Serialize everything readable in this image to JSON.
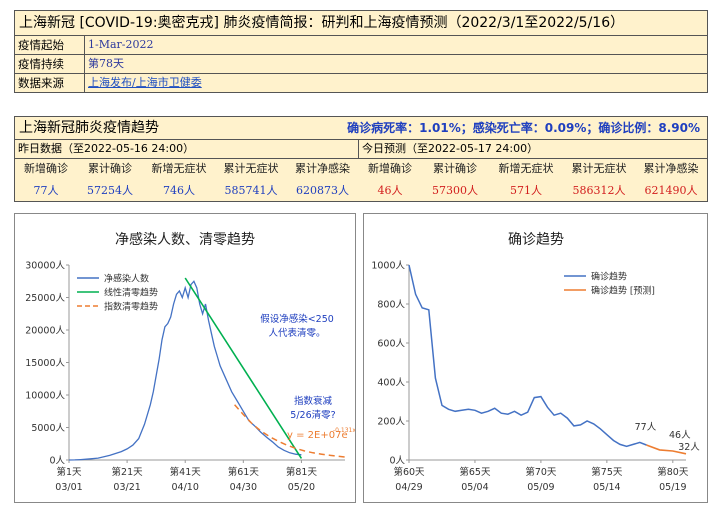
{
  "header": {
    "title": "上海新冠 [COVID-19:奥密克戎] 肺炎疫情简报：研判和上海疫情预测（2022/3/1至2022/5/16）",
    "rows": [
      {
        "label": "疫情起始",
        "value": "1-Mar-2022"
      },
      {
        "label": "疫情持续",
        "value": "第78天"
      },
      {
        "label": "数据来源",
        "value": "上海发布/上海市卫健委"
      }
    ]
  },
  "trend": {
    "title": "上海新冠肺炎疫情趋势",
    "rates": "确诊病死率：1.01%；感染死亡率：0.09%；确诊比例：8.90%",
    "yesterday": {
      "label": "昨日数据（至2022-05-16 24:00）",
      "headers": [
        "新增确诊",
        "累计确诊",
        "新增无症状",
        "累计无症状",
        "累计净感染"
      ],
      "values": [
        "77人",
        "57254人",
        "746人",
        "585741人",
        "620873人"
      ]
    },
    "today": {
      "label": "今日预测（至2022-05-17 24:00）",
      "headers": [
        "新增确诊",
        "累计确诊",
        "新增无症状",
        "累计无症状",
        "累计净感染"
      ],
      "values": [
        "46人",
        "57300人",
        "571人",
        "586312人",
        "621490人"
      ]
    }
  },
  "chart_data": [
    {
      "type": "line",
      "title": "净感染人数、清零趋势",
      "ylim": [
        0,
        30000
      ],
      "yticks": [
        0,
        5000,
        10000,
        15000,
        20000,
        25000,
        30000
      ],
      "ytick_labels": [
        "0人",
        "5000人",
        "10000人",
        "15000人",
        "20000人",
        "25000人",
        "30000人"
      ],
      "xlim": [
        1,
        96
      ],
      "xticks": [
        1,
        21,
        41,
        61,
        81
      ],
      "xtick_labels": [
        "第1天",
        "第21天",
        "第41天",
        "第61天",
        "第81天"
      ],
      "xtick_dates": [
        "03/01",
        "03/21",
        "04/10",
        "04/30",
        "05/20"
      ],
      "legend": [
        "净感染人数",
        "线性清零趋势",
        "指数清零趋势"
      ],
      "colors": {
        "net": "#4472c4",
        "linear": "#00b050",
        "exp": "#ed7d31",
        "text": "#1f3fbf",
        "formula": "#ed7d31"
      },
      "series": [
        {
          "name": "净感染人数",
          "x": [
            1,
            3,
            5,
            7,
            9,
            11,
            13,
            15,
            17,
            19,
            21,
            23,
            25,
            27,
            29,
            30,
            31,
            32,
            33,
            34,
            35,
            36,
            37,
            38,
            39,
            40,
            41,
            42,
            43,
            44,
            45,
            46,
            47,
            48,
            49,
            50,
            51,
            52,
            53,
            55,
            57,
            59,
            61,
            63,
            65,
            67,
            69,
            71,
            73,
            75,
            77,
            79,
            81
          ],
          "values": [
            0,
            20,
            60,
            120,
            200,
            300,
            500,
            700,
            1000,
            1300,
            1700,
            2300,
            3300,
            5500,
            8500,
            10500,
            13000,
            15500,
            18500,
            20500,
            21000,
            22000,
            24000,
            25500,
            26000,
            25000,
            26500,
            25000,
            27000,
            27500,
            26500,
            24000,
            22500,
            24000,
            21500,
            19500,
            17500,
            16000,
            14500,
            12500,
            10500,
            9000,
            7500,
            6000,
            5200,
            4300,
            3500,
            2800,
            2000,
            1500,
            1100,
            900,
            800
          ]
        },
        {
          "name": "线性清零趋势",
          "x": [
            41,
            81
          ],
          "values": [
            28000,
            250
          ]
        },
        {
          "name": "指数清零趋势",
          "x": [
            58,
            61,
            64,
            67,
            70,
            73,
            76,
            79,
            82,
            85,
            88,
            91,
            94,
            96
          ],
          "values": [
            8500,
            7000,
            5600,
            4500,
            3600,
            2900,
            2300,
            1800,
            1400,
            1100,
            900,
            700,
            550,
            450
          ]
        }
      ],
      "annotations": [
        "假设净感染<250",
        "人代表清零。",
        "指数衰减",
        "5/26清零?",
        "y = 2E+07e",
        "-0.131x"
      ]
    },
    {
      "type": "line",
      "title": "确诊趋势",
      "ylim": [
        0,
        1000
      ],
      "yticks": [
        0,
        200,
        400,
        600,
        800,
        1000
      ],
      "ytick_labels": [
        "0人",
        "200人",
        "400人",
        "600人",
        "800人",
        "1000人"
      ],
      "xlim": [
        60,
        81
      ],
      "xticks": [
        60,
        65,
        70,
        75,
        80
      ],
      "xtick_labels": [
        "第60天",
        "第65天",
        "第70天",
        "第75天",
        "第80天"
      ],
      "xtick_dates": [
        "04/29",
        "05/04",
        "05/09",
        "05/14",
        "05/19"
      ],
      "legend": [
        "确诊趋势",
        "确诊趋势 [预测]"
      ],
      "colors": {
        "actual": "#4472c4",
        "forecast": "#ed7d31"
      },
      "series": [
        {
          "name": "确诊趋势",
          "x": [
            60,
            60.5,
            61,
            61.5,
            62,
            62.5,
            63,
            63.5,
            64,
            64.5,
            65,
            65.5,
            66,
            66.5,
            67,
            67.5,
            68,
            68.5,
            69,
            69.5,
            70,
            70.5,
            71,
            71.5,
            72,
            72.5,
            73,
            73.5,
            74,
            74.5,
            75,
            75.5,
            76,
            76.5,
            77,
            77.5,
            78
          ],
          "values": [
            1000,
            850,
            780,
            770,
            420,
            280,
            260,
            250,
            255,
            260,
            255,
            240,
            250,
            265,
            240,
            235,
            250,
            230,
            245,
            320,
            325,
            270,
            230,
            240,
            215,
            175,
            180,
            200,
            185,
            160,
            130,
            100,
            80,
            70,
            80,
            90,
            77
          ]
        },
        {
          "name": "确诊趋势 [预测]",
          "x": [
            78,
            79,
            80,
            81
          ],
          "values": [
            77,
            52,
            46,
            32
          ]
        }
      ],
      "point_labels": [
        {
          "x": 78,
          "y": 77,
          "text": "77人"
        },
        {
          "x": 80,
          "y": 46,
          "text": "46人"
        },
        {
          "x": 81,
          "y": 32,
          "text": "32人"
        }
      ]
    }
  ]
}
